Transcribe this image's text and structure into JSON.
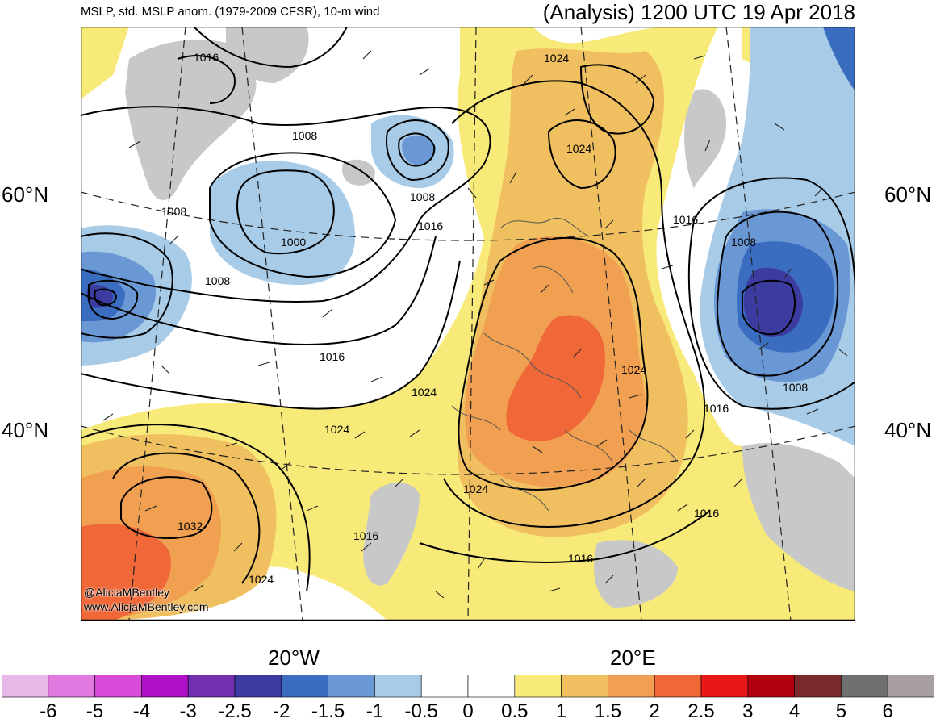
{
  "header": {
    "left_title": "MSLP, std. MSLP anom. (1979-2009 CFSR), 10-m wind",
    "right_title": "(Analysis) 1200 UTC 19 Apr 2018"
  },
  "axes": {
    "lat_60_left": "60°N",
    "lat_40_left": "40°N",
    "lat_60_right": "60°N",
    "lat_40_right": "40°N",
    "lon_20w": "20°W",
    "lon_20e": "20°E"
  },
  "credit": {
    "twitter": "@AliciaMBentley",
    "site": "www.AliciaMBentley.com"
  },
  "isobar_labels": [
    "1016",
    "1008",
    "1008",
    "1008",
    "1000",
    "1008",
    "1016",
    "1016",
    "1024",
    "1024",
    "1024",
    "1024",
    "1024",
    "1032",
    "1024",
    "1016",
    "1024",
    "1016",
    "1016",
    "1016",
    "1008",
    "1008",
    "1016"
  ],
  "colorbar": {
    "labels": [
      "-6",
      "-5",
      "-4",
      "-3",
      "-2.5",
      "-2",
      "-1.5",
      "-1",
      "-0.5",
      "0",
      "0.5",
      "1",
      "1.5",
      "2",
      "2.5",
      "3",
      "4",
      "5",
      "6"
    ],
    "colors": [
      "#e8b8e8",
      "#e07ae0",
      "#d84ad8",
      "#b010c8",
      "#7030b0",
      "#3c3ca0",
      "#3a6cc0",
      "#6a98d4",
      "#a8cce8",
      "#ffffff",
      "#ffffff",
      "#f8ea78",
      "#f0c060",
      "#f0a050",
      "#f06838",
      "#e81818",
      "#b00010",
      "#7a2a2a",
      "#707070",
      "#a8a0a0"
    ]
  },
  "colors": {
    "ocean": "#ffffff",
    "pos_light": "#f8ea78",
    "pos_mid": "#f0c060",
    "pos_high": "#f0a050",
    "pos_higher": "#f06838",
    "neg_light": "#a8cce8",
    "neg_mid": "#6a98d4",
    "neg_high": "#3a6cc0",
    "neg_deep": "#3c3ca0",
    "land_gray": "#c8c8c8"
  }
}
